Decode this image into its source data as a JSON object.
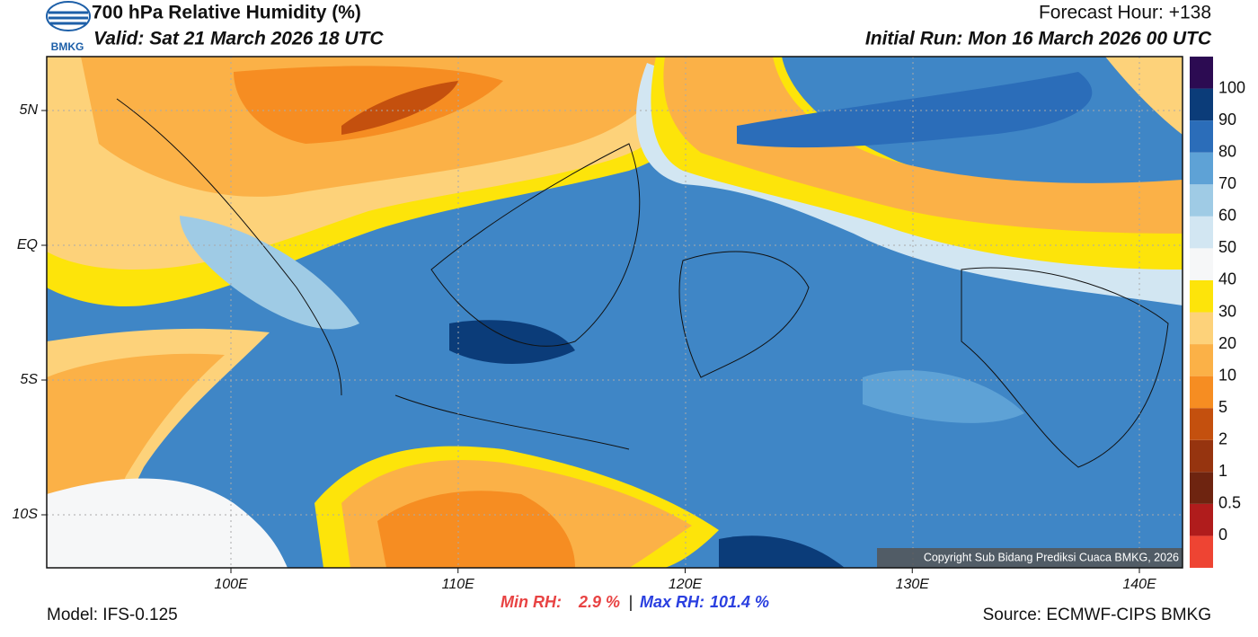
{
  "header": {
    "title": "700 hPa Relative Humidity (%)",
    "valid": "Valid: Sat 21 March 2026 18 UTC",
    "forecast_hour": "Forecast Hour: +138",
    "initial_run": "Initial Run: Mon 16 March 2026 00 UTC",
    "logo_text": "BMKG"
  },
  "map": {
    "lat_labels": [
      "5N",
      "EQ",
      "5S",
      "10S"
    ],
    "lon_labels": [
      "100E",
      "110E",
      "120E",
      "130E",
      "140E"
    ],
    "copyright": "Copyright Sub Bidang Prediksi Cuaca BMKG, 2026"
  },
  "colorbar": {
    "labels": [
      0,
      0.5,
      1,
      2,
      5,
      10,
      20,
      30,
      40,
      50,
      60,
      70,
      80,
      90,
      100
    ],
    "colors": [
      "#ee4433",
      "#b01c1c",
      "#6e2410",
      "#96340f",
      "#c4500e",
      "#f68d22",
      "#fbb147",
      "#fdd27a",
      "#fde40a",
      "#f6f7f8",
      "#d2e6f2",
      "#9fcbe5",
      "#5ea2d6",
      "#2b6db9",
      "#0b3c79",
      "#2c0b52"
    ]
  },
  "stats": {
    "min_label": "Min RH:",
    "min_value": "2.9 %",
    "separator": "|",
    "max_label": "Max RH:",
    "max_value": "101.4 %"
  },
  "footer": {
    "model": "Model: IFS-0.125",
    "source": "Source: ECMWF-CIPS BMKG"
  }
}
